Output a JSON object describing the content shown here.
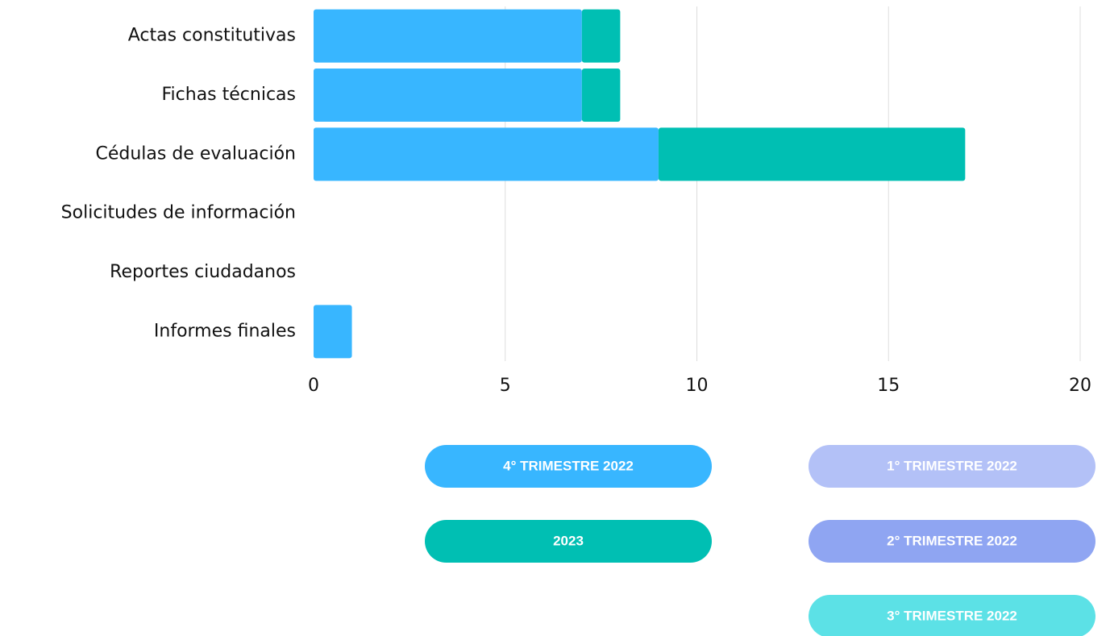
{
  "chart_data": {
    "type": "bar",
    "orientation": "horizontal",
    "stacked": true,
    "categories": [
      "Actas constitutivas",
      "Fichas técnicas",
      "Cédulas de evaluación",
      "Solicitudes de información",
      "Reportes ciudadanos",
      "Informes finales"
    ],
    "series": [
      {
        "name": "4° TRIMESTRE 2022",
        "color": "#38b6ff",
        "values": [
          7,
          7,
          9,
          0,
          0,
          1
        ]
      },
      {
        "name": "2023",
        "color": "#00bfb3",
        "values": [
          1,
          1,
          8,
          0,
          0,
          0
        ]
      },
      {
        "name": "1° TRIMESTRE 2022",
        "color": "#b3c1f7",
        "values": [
          0,
          0,
          0,
          0,
          0,
          0
        ]
      },
      {
        "name": "2° TRIMESTRE 2022",
        "color": "#8fa5f2",
        "values": [
          0,
          0,
          0,
          0,
          0,
          0
        ]
      },
      {
        "name": "3° TRIMESTRE 2022",
        "color": "#5ce1e6",
        "values": [
          0,
          0,
          0,
          0,
          0,
          0
        ]
      }
    ],
    "xlim": [
      0,
      20
    ],
    "xticks": [
      0,
      5,
      10,
      15,
      20
    ],
    "grid": true
  }
}
